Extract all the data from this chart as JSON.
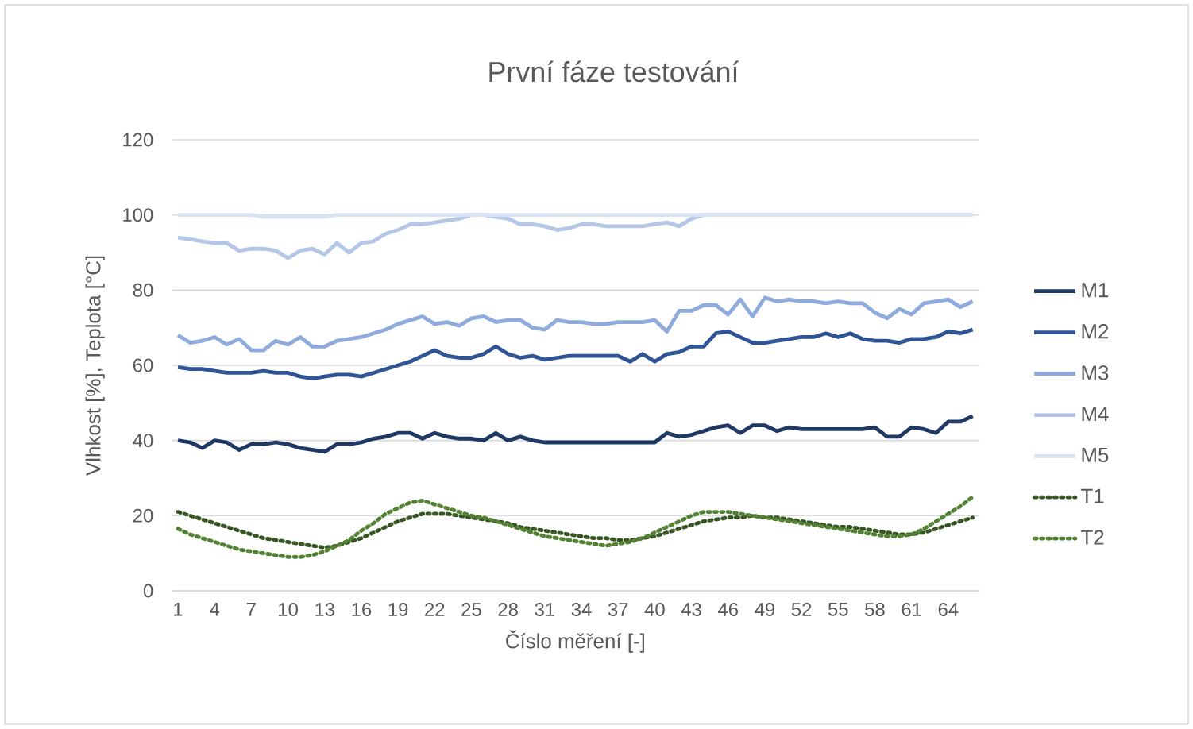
{
  "chart_data": {
    "type": "line",
    "title": "První fáze testování",
    "xlabel": "Číslo měření [-]",
    "ylabel": "Vlhkost [%], Teplota [°C]",
    "categories": [
      "1",
      null,
      null,
      "4",
      null,
      null,
      "7",
      null,
      null,
      "10",
      null,
      null,
      "13",
      null,
      null,
      "16",
      null,
      null,
      "19",
      null,
      null,
      "22",
      null,
      null,
      "25",
      null,
      null,
      "28",
      null,
      null,
      "31",
      null,
      null,
      "34",
      null,
      null,
      "37",
      null,
      null,
      "40",
      null,
      null,
      "43",
      null,
      null,
      "46",
      null,
      null,
      "49",
      null,
      null,
      "52",
      null,
      null,
      "55",
      null,
      null,
      "58",
      null,
      null,
      "61",
      null,
      null,
      "64",
      null,
      null
    ],
    "series": [
      {
        "name": "M1",
        "color": "#1f3864",
        "line_style": "solid",
        "values": [
          40,
          39.5,
          38,
          40,
          39.5,
          37.5,
          39,
          39,
          39.5,
          39,
          38,
          37.5,
          37,
          39,
          39,
          39.5,
          40.5,
          41,
          42,
          42,
          40.5,
          42,
          41,
          40.5,
          40.5,
          40,
          42,
          40,
          41,
          40,
          39.5,
          39.5,
          39.5,
          39.5,
          39.5,
          39.5,
          39.5,
          39.5,
          39.5,
          39.5,
          42,
          41,
          41.5,
          42.5,
          43.5,
          44,
          42,
          44,
          44,
          42.5,
          43.5,
          43,
          43,
          43,
          43,
          43,
          43,
          43.5,
          41,
          41,
          43.5,
          43,
          42,
          45,
          45,
          46.5
        ]
      },
      {
        "name": "M2",
        "color": "#2f5597",
        "line_style": "solid",
        "values": [
          59.5,
          59,
          59,
          58.5,
          58,
          58,
          58,
          58.5,
          58,
          58,
          57,
          56.5,
          57,
          57.5,
          57.5,
          57,
          58,
          59,
          60,
          61,
          62.5,
          64,
          62.5,
          62,
          62,
          63,
          65,
          63,
          62,
          62.5,
          61.5,
          62,
          62.5,
          62.5,
          62.5,
          62.5,
          62.5,
          61,
          63,
          61,
          63,
          63.5,
          65,
          65,
          68.5,
          69,
          67.5,
          66,
          66,
          66.5,
          67,
          67.5,
          67.5,
          68.5,
          67.5,
          68.5,
          67,
          66.5,
          66.5,
          66,
          67,
          67,
          67.5,
          69,
          68.5,
          69.5
        ]
      },
      {
        "name": "M3",
        "color": "#8faadc",
        "line_style": "solid",
        "values": [
          68,
          66,
          66.5,
          67.5,
          65.5,
          67,
          64,
          64,
          66.5,
          65.5,
          67.5,
          65,
          65,
          66.5,
          67,
          67.5,
          68.5,
          69.5,
          71,
          72,
          73,
          71,
          71.5,
          70.5,
          72.5,
          73,
          71.5,
          72,
          72,
          70,
          69.5,
          72,
          71.5,
          71.5,
          71,
          71,
          71.5,
          71.5,
          71.5,
          72,
          69,
          74.5,
          74.5,
          76,
          76,
          73.5,
          77.5,
          73,
          78,
          77,
          77.5,
          77,
          77,
          76.5,
          77,
          76.5,
          76.5,
          74,
          72.5,
          75,
          73.5,
          76.5,
          77,
          77.5,
          75.5,
          77
        ]
      },
      {
        "name": "M4",
        "color": "#b4c7e7",
        "line_style": "solid",
        "values": [
          94,
          93.5,
          93,
          92.5,
          92.5,
          90.5,
          91,
          91,
          90.5,
          88.5,
          90.5,
          91,
          89.5,
          92.5,
          90,
          92.5,
          93,
          95,
          96,
          97.5,
          97.5,
          98,
          98.5,
          99,
          100,
          100,
          99.5,
          99,
          97.5,
          97.5,
          97,
          96,
          96.5,
          97.5,
          97.5,
          97,
          97,
          97,
          97,
          97.5,
          98,
          97,
          99,
          100,
          100,
          100,
          100,
          100,
          100,
          100,
          100,
          100,
          100,
          100,
          100,
          100,
          100,
          100,
          100,
          100,
          100,
          100,
          100,
          100,
          100,
          100
        ]
      },
      {
        "name": "M5",
        "color": "#dae3f3",
        "line_style": "solid",
        "values": [
          100,
          100,
          100,
          100,
          100,
          100,
          100,
          99.5,
          99.5,
          99.5,
          99.5,
          99.5,
          99.5,
          100,
          100,
          100,
          100,
          100,
          100,
          100,
          100,
          100,
          100,
          100,
          100,
          100,
          100,
          100,
          100,
          100,
          100,
          100,
          100,
          100,
          100,
          100,
          100,
          100,
          100,
          100,
          100,
          100,
          100,
          100,
          100,
          100,
          100,
          100,
          100,
          100,
          100,
          100,
          100,
          100,
          100,
          100,
          100,
          100,
          100,
          100,
          100,
          100,
          100,
          100,
          100,
          100
        ]
      },
      {
        "name": "T1",
        "color": "#375623",
        "line_style": "dotted",
        "values": [
          21,
          20,
          19,
          18,
          17,
          16,
          15,
          14,
          13.5,
          13,
          12.5,
          12,
          11.5,
          12,
          13,
          14,
          15.5,
          17,
          18.5,
          19.5,
          20.5,
          20.5,
          20.5,
          20,
          19.5,
          19,
          18.5,
          18,
          17,
          16.5,
          16,
          15.5,
          15,
          14.5,
          14,
          14,
          13.5,
          13.5,
          14,
          14.5,
          15.5,
          16.5,
          17.5,
          18.5,
          19,
          19.5,
          19.5,
          20,
          19.5,
          19.5,
          19,
          18.5,
          18,
          17.5,
          17,
          17,
          16.5,
          16,
          15.5,
          15,
          15,
          15.5,
          16.5,
          17.5,
          18.5,
          19.5
        ]
      },
      {
        "name": "T2",
        "color": "#548235",
        "line_style": "dotted",
        "values": [
          16.5,
          15,
          14,
          13,
          12,
          11,
          10.5,
          10,
          9.5,
          9,
          9,
          9.5,
          10.5,
          12,
          13.5,
          16,
          18,
          20.5,
          22,
          23.5,
          24,
          23,
          22,
          21,
          20,
          19.5,
          18.5,
          17.5,
          16.5,
          15.5,
          14.5,
          14,
          13.5,
          13,
          12.5,
          12,
          12.5,
          13,
          14,
          15.5,
          17,
          18.5,
          20,
          21,
          21,
          21,
          20.5,
          20,
          19.5,
          19,
          18.5,
          18,
          17.5,
          17,
          16.5,
          16,
          15.5,
          15,
          14.5,
          14.5,
          15,
          16.5,
          18.5,
          20.5,
          22.5,
          25
        ]
      }
    ],
    "ylim": [
      0,
      120
    ],
    "yticks": [
      0,
      20,
      40,
      60,
      80,
      100,
      120
    ],
    "grid": "y",
    "legend": "right",
    "marker": "none"
  }
}
